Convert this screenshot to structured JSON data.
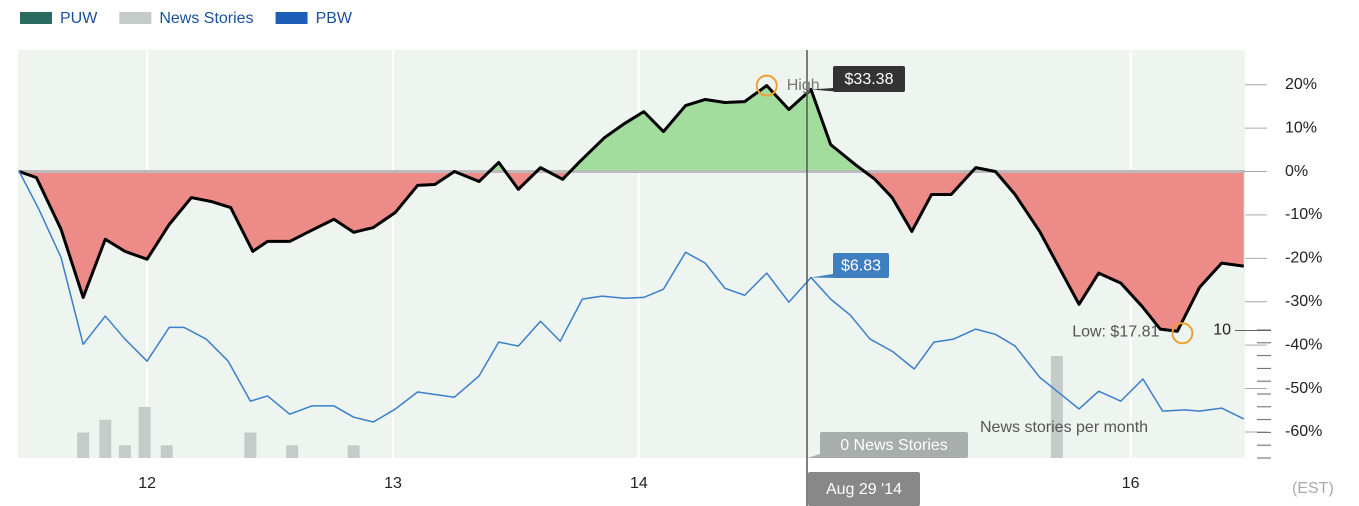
{
  "chart_data": {
    "type": "line",
    "legend": [
      "PUW",
      "News Stories",
      "PBW"
    ],
    "xlim": [
      11.475,
      16.465
    ],
    "xticks": [
      12,
      13,
      14,
      16
    ],
    "ylim": [
      -66,
      28
    ],
    "yticks": [
      {
        "value": 20,
        "label": "20%"
      },
      {
        "value": 10,
        "label": "10%"
      },
      {
        "value": 0,
        "label": "0%"
      },
      {
        "value": -10,
        "label": "-10%"
      },
      {
        "value": -20,
        "label": "-20%"
      },
      {
        "value": -30,
        "label": "-30%"
      },
      {
        "value": -40,
        "label": "-40%"
      },
      {
        "value": -50,
        "label": "-50%"
      },
      {
        "value": -60,
        "label": "-60%"
      }
    ],
    "y2lim": [
      0,
      32
    ],
    "y2ticks": [
      10
    ],
    "series": [
      {
        "name": "PUW",
        "color": "#2a6b5f",
        "line_color": "#000000",
        "fill_positive": "#a3dd9e",
        "fill_negative": "#ec8b88",
        "x": [
          11.48,
          11.55,
          11.65,
          11.74,
          11.83,
          11.91,
          12.0,
          12.09,
          12.18,
          12.26,
          12.34,
          12.43,
          12.49,
          12.58,
          12.66,
          12.76,
          12.84,
          12.92,
          13.01,
          13.1,
          13.17,
          13.25,
          13.35,
          13.43,
          13.51,
          13.6,
          13.69,
          13.76,
          13.86,
          13.94,
          14.02,
          14.1,
          14.19,
          14.27,
          14.35,
          14.43,
          14.52,
          14.61,
          14.7,
          14.78,
          14.88,
          14.96,
          15.03,
          15.11,
          15.19,
          15.27,
          15.37,
          15.45,
          15.53,
          15.63,
          15.79,
          15.87,
          15.96,
          16.05,
          16.12,
          16.19,
          16.28,
          16.37,
          16.46
        ],
        "values": [
          0,
          -1.4,
          -13.3,
          -29,
          -15.6,
          -18.4,
          -20.2,
          -12.2,
          -6,
          -6.9,
          -8.3,
          -18.4,
          -16.1,
          -16.1,
          -13.8,
          -11,
          -14,
          -12.9,
          -9.4,
          -3.2,
          -3,
          0,
          -2.3,
          2.1,
          -4.1,
          0.9,
          -1.8,
          2.3,
          7.8,
          11,
          13.8,
          9.2,
          15.2,
          16.6,
          15.9,
          16.1,
          19.8,
          14.3,
          18.9,
          6.2,
          1.6,
          -1.8,
          -6,
          -13.8,
          -5.3,
          -5.3,
          0.9,
          0,
          -5.3,
          -13.8,
          -30.6,
          -23.4,
          -25.7,
          -31.3,
          -36.3,
          -36.8,
          -26.7,
          -21.1,
          -21.8
        ]
      },
      {
        "name": "News Stories",
        "color": "#c5cbc8",
        "axis": "y2",
        "x": [
          11.74,
          11.83,
          11.91,
          11.99,
          12.08,
          12.42,
          12.59,
          12.84,
          15.7
        ],
        "values": [
          2,
          3,
          1,
          4,
          1,
          2,
          1,
          1,
          8
        ]
      },
      {
        "name": "PBW",
        "color": "#1d5fb8",
        "line_color": "#3a7fcc",
        "x": [
          11.48,
          11.56,
          11.65,
          11.74,
          11.83,
          11.91,
          12.0,
          12.09,
          12.15,
          12.24,
          12.33,
          12.42,
          12.49,
          12.58,
          12.67,
          12.76,
          12.84,
          12.92,
          13.01,
          13.1,
          13.25,
          13.35,
          13.43,
          13.51,
          13.6,
          13.68,
          13.77,
          13.85,
          13.94,
          14.02,
          14.1,
          14.19,
          14.27,
          14.35,
          14.43,
          14.52,
          14.61,
          14.7,
          14.78,
          14.86,
          14.94,
          15.03,
          15.12,
          15.2,
          15.28,
          15.37,
          15.45,
          15.53,
          15.63,
          15.79,
          15.87,
          15.96,
          16.05,
          16.13,
          16.22,
          16.28,
          16.37,
          16.46
        ],
        "values": [
          0,
          -8.7,
          -19.8,
          -39.8,
          -33.3,
          -38.6,
          -43.7,
          -35.9,
          -35.9,
          -38.6,
          -43.7,
          -52.9,
          -51.7,
          -55.9,
          -54,
          -54,
          -56.6,
          -57.7,
          -54.7,
          -50.8,
          -52,
          -47.1,
          -39.3,
          -40.2,
          -34.5,
          -39.1,
          -29.4,
          -28.7,
          -29.2,
          -29,
          -27.1,
          -18.6,
          -21.1,
          -26.9,
          -28.5,
          -23.4,
          -30.1,
          -24.4,
          -29.4,
          -33.1,
          -38.6,
          -41.4,
          -45.5,
          -39.3,
          -38.6,
          -36.3,
          -37.5,
          -40.2,
          -47.4,
          -54.7,
          -50.6,
          -52.9,
          -47.8,
          -55.2,
          -54.9,
          -55.2,
          -54.5,
          -57
        ]
      }
    ],
    "annotations": {
      "high_text": "High",
      "high_price": "$33.38",
      "low_text": "Low: $17.81",
      "pbw_price": "$6.83",
      "news_count": "0 News Stories",
      "cursor_date": "Aug 29 '14",
      "news_caption": "News stories per month",
      "timezone": "(EST)"
    }
  }
}
